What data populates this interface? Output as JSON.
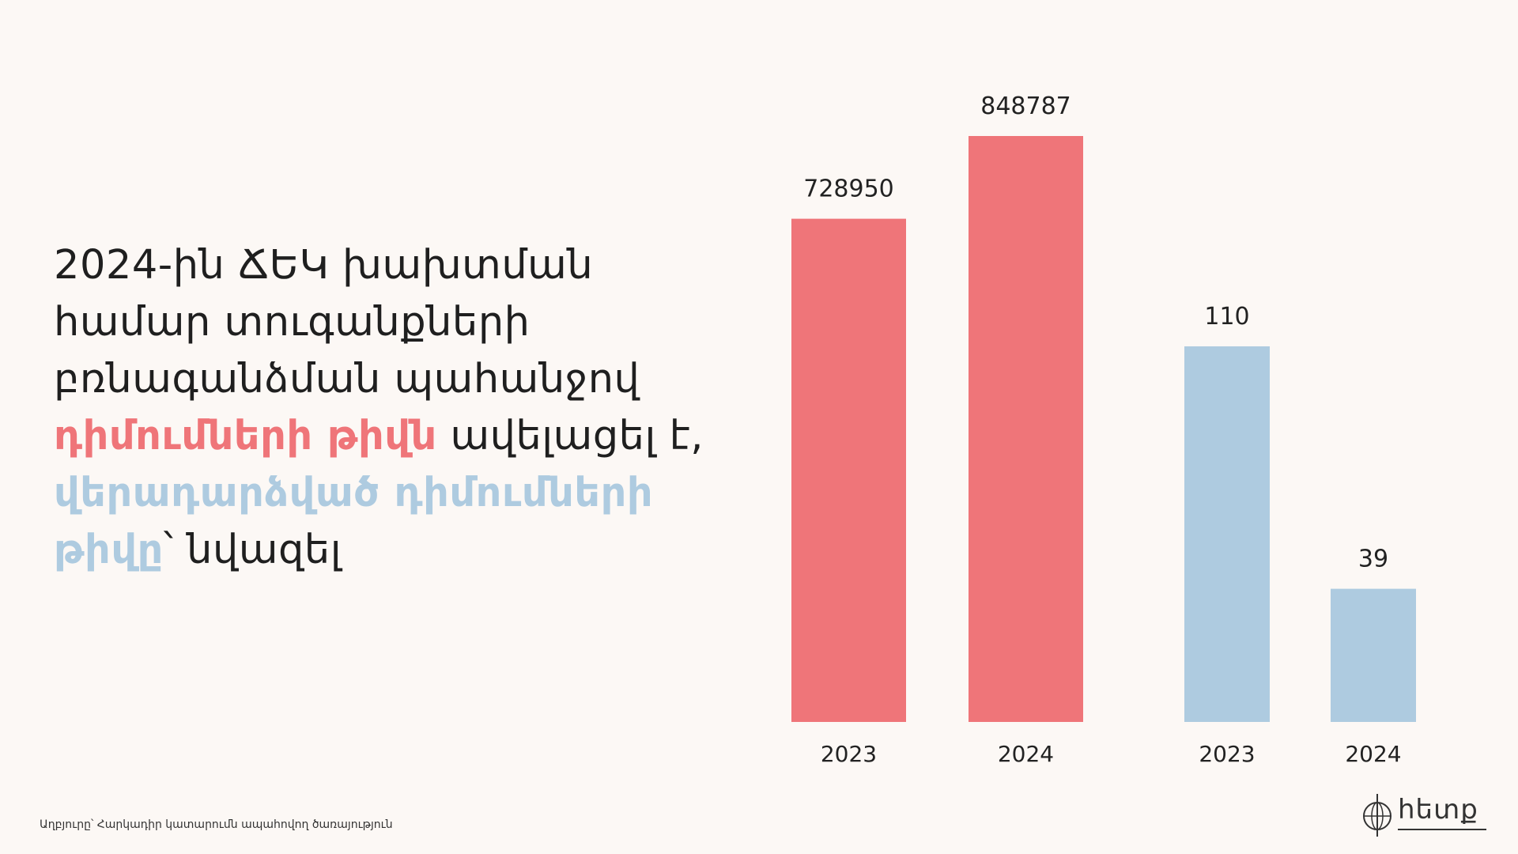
{
  "headline": {
    "line1": "2024-ին ՃԵԿ խախտման",
    "line2": "համար տուգանքների",
    "line3": "բռնագանձման պահանջով",
    "highlight_red": "դիմումների թիվն",
    "line4_rest": " ավելացել է,",
    "highlight_blue_1": "վերադարձված դիմումների",
    "highlight_blue_2": "թիվը",
    "line6_rest": "՝ նվազել"
  },
  "colors": {
    "red": "#ef7579",
    "blue": "#aecbe0",
    "background": "#fcf8f5"
  },
  "chart_data": {
    "type": "bar",
    "groups": [
      {
        "color": "#ef7579",
        "categories": [
          "2023",
          "2024"
        ],
        "values": [
          728950,
          848787
        ]
      },
      {
        "color": "#aecbe0",
        "categories": [
          "2023",
          "2024"
        ],
        "values": [
          110,
          39
        ]
      }
    ],
    "data_labels": [
      "728950",
      "848787",
      "110",
      "39"
    ]
  },
  "source": "Աղբյուրը՝ Հարկադիր կատարումն ապահովող ծառայություն",
  "logo": {
    "text": "հետք",
    "icon": "globe-compass-icon"
  }
}
